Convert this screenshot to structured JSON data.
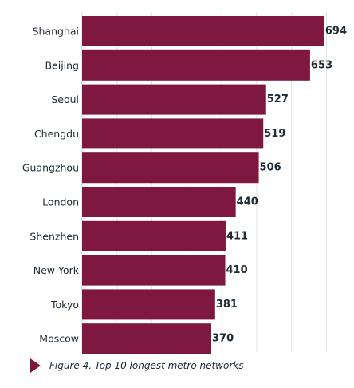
{
  "chart_data": {
    "type": "bar",
    "orientation": "horizontal",
    "categories": [
      "Shanghai",
      "Beijing",
      "Seoul",
      "Chengdu",
      "Guangzhou",
      "London",
      "Shenzhen",
      "New York",
      "Tokyo",
      "Moscow"
    ],
    "values": [
      694,
      653,
      527,
      519,
      506,
      440,
      411,
      410,
      381,
      370
    ],
    "data_labels": [
      "694",
      "653",
      "527",
      "519",
      "506",
      "440",
      "411",
      "410",
      "381",
      "370"
    ],
    "xlim": [
      0,
      700
    ],
    "grid": true,
    "bar_color": "#7f1840"
  },
  "caption": {
    "text": "Figure 4. Top 10 longest metro networks",
    "icon": "triangle-right-icon",
    "icon_color": "#7f1840"
  }
}
